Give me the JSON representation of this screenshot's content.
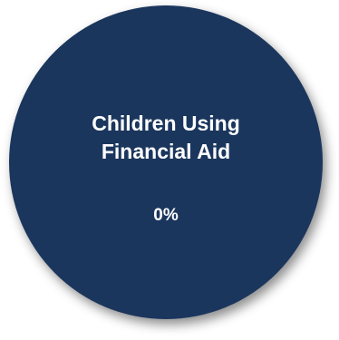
{
  "stat": {
    "title": "Children Using Financial Aid",
    "value": "0%"
  },
  "colors": {
    "circle_fill": "#1b365d",
    "text": "#ffffff"
  }
}
